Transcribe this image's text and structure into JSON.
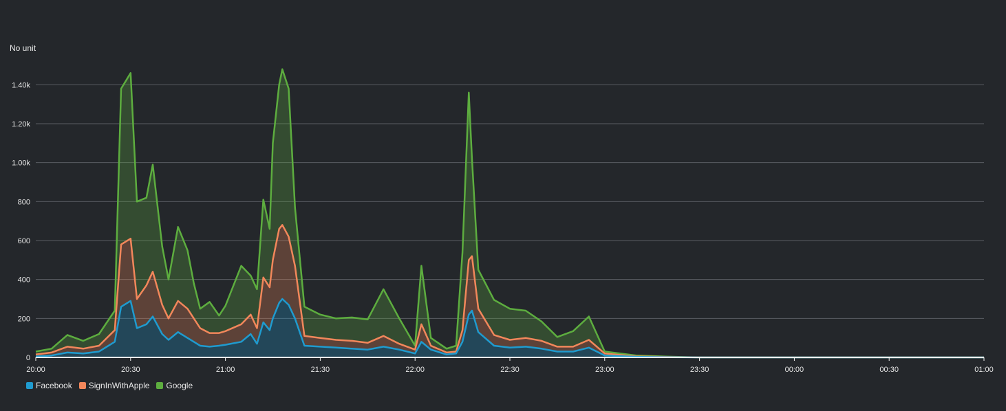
{
  "chart_data": {
    "type": "area",
    "stacked": true,
    "unit_label": "No unit",
    "x_ticks": [
      "20:00",
      "20:30",
      "21:00",
      "21:30",
      "22:00",
      "22:30",
      "23:00",
      "23:30",
      "00:00",
      "00:30",
      "01:00"
    ],
    "y_ticks": [
      "0",
      "200",
      "400",
      "600",
      "800",
      "1.00k",
      "1.20k",
      "1.40k"
    ],
    "ylim": [
      0,
      1500
    ],
    "grid": true,
    "legend_position": "bottom-left",
    "series_meta": [
      {
        "name": "Facebook",
        "color": "#1f9bcf"
      },
      {
        "name": "SignInWithApple",
        "color": "#f2875b"
      },
      {
        "name": "Google",
        "color": "#5dad3f"
      }
    ],
    "x": [
      "20:00",
      "20:05",
      "20:10",
      "20:15",
      "20:20",
      "20:25",
      "20:27",
      "20:30",
      "20:32",
      "20:35",
      "20:37",
      "20:40",
      "20:42",
      "20:45",
      "20:48",
      "20:50",
      "20:52",
      "20:55",
      "20:58",
      "21:00",
      "21:05",
      "21:08",
      "21:10",
      "21:12",
      "21:14",
      "21:15",
      "21:17",
      "21:18",
      "21:20",
      "21:22",
      "21:25",
      "21:30",
      "21:35",
      "21:40",
      "21:45",
      "21:50",
      "21:55",
      "22:00",
      "22:02",
      "22:05",
      "22:10",
      "22:13",
      "22:15",
      "22:17",
      "22:18",
      "22:20",
      "22:25",
      "22:30",
      "22:35",
      "22:40",
      "22:45",
      "22:50",
      "22:55",
      "23:00",
      "23:10",
      "23:20",
      "23:30",
      "23:45",
      "00:00",
      "00:30",
      "01:00"
    ],
    "series": [
      {
        "name": "Facebook",
        "values": [
          5,
          10,
          25,
          20,
          30,
          80,
          260,
          290,
          150,
          170,
          210,
          120,
          90,
          130,
          100,
          80,
          60,
          55,
          60,
          65,
          80,
          120,
          70,
          180,
          140,
          200,
          280,
          300,
          270,
          200,
          60,
          55,
          50,
          45,
          40,
          55,
          40,
          20,
          80,
          40,
          15,
          20,
          80,
          220,
          240,
          130,
          60,
          50,
          55,
          45,
          30,
          30,
          50,
          10,
          3,
          1,
          0,
          0,
          0,
          0,
          0
        ]
      },
      {
        "name": "SignInWithApple",
        "values": [
          10,
          15,
          30,
          25,
          30,
          60,
          320,
          320,
          150,
          200,
          230,
          150,
          110,
          160,
          150,
          120,
          90,
          70,
          65,
          70,
          90,
          100,
          80,
          230,
          220,
          300,
          380,
          380,
          350,
          270,
          50,
          45,
          40,
          40,
          35,
          55,
          30,
          20,
          90,
          20,
          10,
          10,
          60,
          280,
          280,
          120,
          55,
          40,
          45,
          40,
          25,
          25,
          40,
          10,
          2,
          1,
          0,
          0,
          0,
          0,
          0
        ]
      },
      {
        "name": "Google",
        "values": [
          15,
          20,
          60,
          40,
          60,
          100,
          800,
          850,
          500,
          450,
          550,
          300,
          200,
          380,
          300,
          180,
          100,
          160,
          90,
          130,
          300,
          200,
          200,
          400,
          300,
          600,
          740,
          800,
          760,
          300,
          150,
          120,
          110,
          120,
          120,
          240,
          130,
          20,
          300,
          40,
          20,
          30,
          400,
          860,
          500,
          200,
          180,
          160,
          140,
          100,
          50,
          80,
          120,
          10,
          5,
          2,
          0,
          0,
          0,
          0,
          0
        ]
      }
    ]
  }
}
